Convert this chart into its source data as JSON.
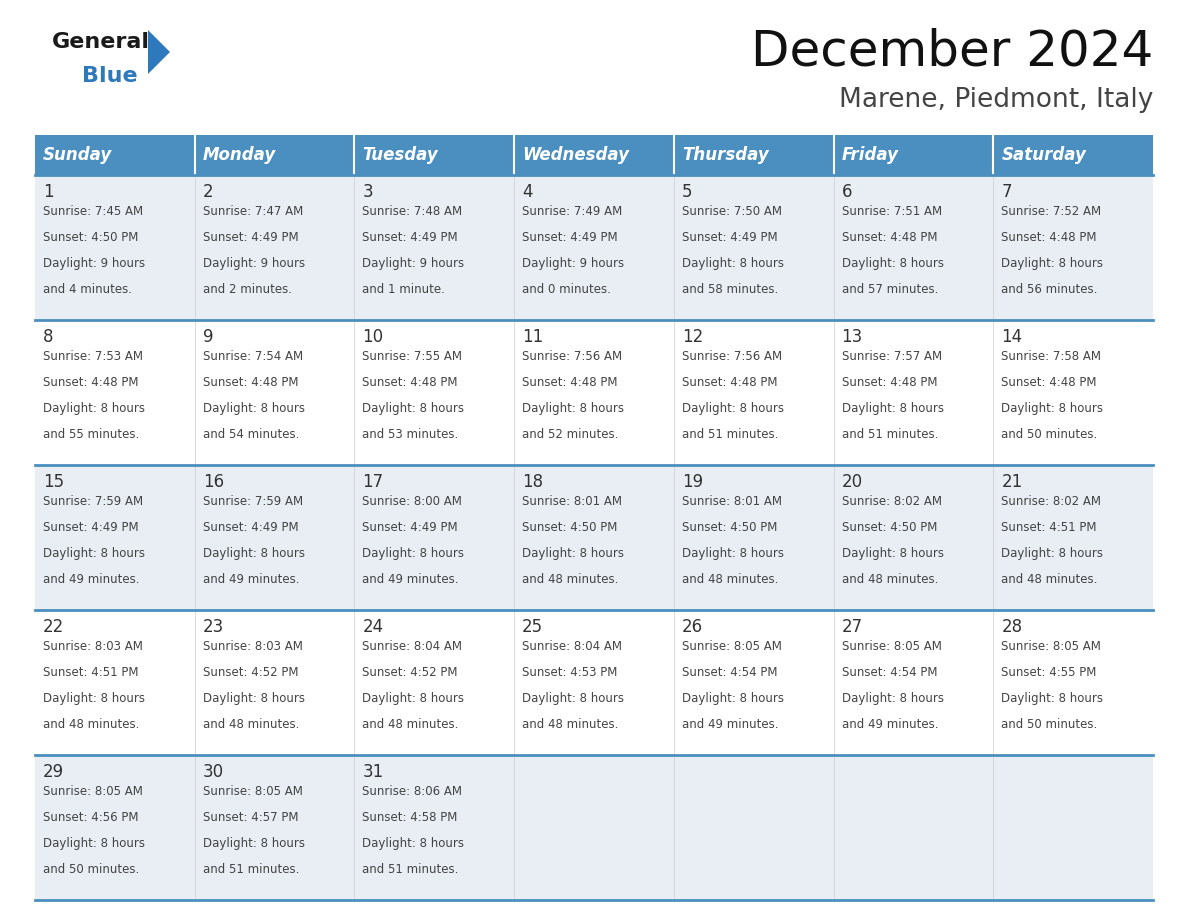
{
  "title": "December 2024",
  "subtitle": "Marene, Piedmont, Italy",
  "days_of_week": [
    "Sunday",
    "Monday",
    "Tuesday",
    "Wednesday",
    "Thursday",
    "Friday",
    "Saturday"
  ],
  "header_bg": "#4A8FC0",
  "header_text": "#FFFFFF",
  "day_num_color": "#333333",
  "cell_text_color": "#444444",
  "row_bg_odd": "#E8EEF4",
  "row_bg_even": "#FFFFFF",
  "grid_line_color": "#4A8FC0",
  "logo_general_color": "#1a1a1a",
  "logo_blue_color": "#2E79BC",
  "calendar_data": [
    [
      {
        "day": 1,
        "sunrise": "7:45 AM",
        "sunset": "4:50 PM",
        "daylight_line1": "9 hours",
        "daylight_line2": "and 4 minutes."
      },
      {
        "day": 2,
        "sunrise": "7:47 AM",
        "sunset": "4:49 PM",
        "daylight_line1": "9 hours",
        "daylight_line2": "and 2 minutes."
      },
      {
        "day": 3,
        "sunrise": "7:48 AM",
        "sunset": "4:49 PM",
        "daylight_line1": "9 hours",
        "daylight_line2": "and 1 minute."
      },
      {
        "day": 4,
        "sunrise": "7:49 AM",
        "sunset": "4:49 PM",
        "daylight_line1": "9 hours",
        "daylight_line2": "and 0 minutes."
      },
      {
        "day": 5,
        "sunrise": "7:50 AM",
        "sunset": "4:49 PM",
        "daylight_line1": "8 hours",
        "daylight_line2": "and 58 minutes."
      },
      {
        "day": 6,
        "sunrise": "7:51 AM",
        "sunset": "4:48 PM",
        "daylight_line1": "8 hours",
        "daylight_line2": "and 57 minutes."
      },
      {
        "day": 7,
        "sunrise": "7:52 AM",
        "sunset": "4:48 PM",
        "daylight_line1": "8 hours",
        "daylight_line2": "and 56 minutes."
      }
    ],
    [
      {
        "day": 8,
        "sunrise": "7:53 AM",
        "sunset": "4:48 PM",
        "daylight_line1": "8 hours",
        "daylight_line2": "and 55 minutes."
      },
      {
        "day": 9,
        "sunrise": "7:54 AM",
        "sunset": "4:48 PM",
        "daylight_line1": "8 hours",
        "daylight_line2": "and 54 minutes."
      },
      {
        "day": 10,
        "sunrise": "7:55 AM",
        "sunset": "4:48 PM",
        "daylight_line1": "8 hours",
        "daylight_line2": "and 53 minutes."
      },
      {
        "day": 11,
        "sunrise": "7:56 AM",
        "sunset": "4:48 PM",
        "daylight_line1": "8 hours",
        "daylight_line2": "and 52 minutes."
      },
      {
        "day": 12,
        "sunrise": "7:56 AM",
        "sunset": "4:48 PM",
        "daylight_line1": "8 hours",
        "daylight_line2": "and 51 minutes."
      },
      {
        "day": 13,
        "sunrise": "7:57 AM",
        "sunset": "4:48 PM",
        "daylight_line1": "8 hours",
        "daylight_line2": "and 51 minutes."
      },
      {
        "day": 14,
        "sunrise": "7:58 AM",
        "sunset": "4:48 PM",
        "daylight_line1": "8 hours",
        "daylight_line2": "and 50 minutes."
      }
    ],
    [
      {
        "day": 15,
        "sunrise": "7:59 AM",
        "sunset": "4:49 PM",
        "daylight_line1": "8 hours",
        "daylight_line2": "and 49 minutes."
      },
      {
        "day": 16,
        "sunrise": "7:59 AM",
        "sunset": "4:49 PM",
        "daylight_line1": "8 hours",
        "daylight_line2": "and 49 minutes."
      },
      {
        "day": 17,
        "sunrise": "8:00 AM",
        "sunset": "4:49 PM",
        "daylight_line1": "8 hours",
        "daylight_line2": "and 49 minutes."
      },
      {
        "day": 18,
        "sunrise": "8:01 AM",
        "sunset": "4:50 PM",
        "daylight_line1": "8 hours",
        "daylight_line2": "and 48 minutes."
      },
      {
        "day": 19,
        "sunrise": "8:01 AM",
        "sunset": "4:50 PM",
        "daylight_line1": "8 hours",
        "daylight_line2": "and 48 minutes."
      },
      {
        "day": 20,
        "sunrise": "8:02 AM",
        "sunset": "4:50 PM",
        "daylight_line1": "8 hours",
        "daylight_line2": "and 48 minutes."
      },
      {
        "day": 21,
        "sunrise": "8:02 AM",
        "sunset": "4:51 PM",
        "daylight_line1": "8 hours",
        "daylight_line2": "and 48 minutes."
      }
    ],
    [
      {
        "day": 22,
        "sunrise": "8:03 AM",
        "sunset": "4:51 PM",
        "daylight_line1": "8 hours",
        "daylight_line2": "and 48 minutes."
      },
      {
        "day": 23,
        "sunrise": "8:03 AM",
        "sunset": "4:52 PM",
        "daylight_line1": "8 hours",
        "daylight_line2": "and 48 minutes."
      },
      {
        "day": 24,
        "sunrise": "8:04 AM",
        "sunset": "4:52 PM",
        "daylight_line1": "8 hours",
        "daylight_line2": "and 48 minutes."
      },
      {
        "day": 25,
        "sunrise": "8:04 AM",
        "sunset": "4:53 PM",
        "daylight_line1": "8 hours",
        "daylight_line2": "and 48 minutes."
      },
      {
        "day": 26,
        "sunrise": "8:05 AM",
        "sunset": "4:54 PM",
        "daylight_line1": "8 hours",
        "daylight_line2": "and 49 minutes."
      },
      {
        "day": 27,
        "sunrise": "8:05 AM",
        "sunset": "4:54 PM",
        "daylight_line1": "8 hours",
        "daylight_line2": "and 49 minutes."
      },
      {
        "day": 28,
        "sunrise": "8:05 AM",
        "sunset": "4:55 PM",
        "daylight_line1": "8 hours",
        "daylight_line2": "and 50 minutes."
      }
    ],
    [
      {
        "day": 29,
        "sunrise": "8:05 AM",
        "sunset": "4:56 PM",
        "daylight_line1": "8 hours",
        "daylight_line2": "and 50 minutes."
      },
      {
        "day": 30,
        "sunrise": "8:05 AM",
        "sunset": "4:57 PM",
        "daylight_line1": "8 hours",
        "daylight_line2": "and 51 minutes."
      },
      {
        "day": 31,
        "sunrise": "8:06 AM",
        "sunset": "4:58 PM",
        "daylight_line1": "8 hours",
        "daylight_line2": "and 51 minutes."
      },
      null,
      null,
      null,
      null
    ]
  ]
}
